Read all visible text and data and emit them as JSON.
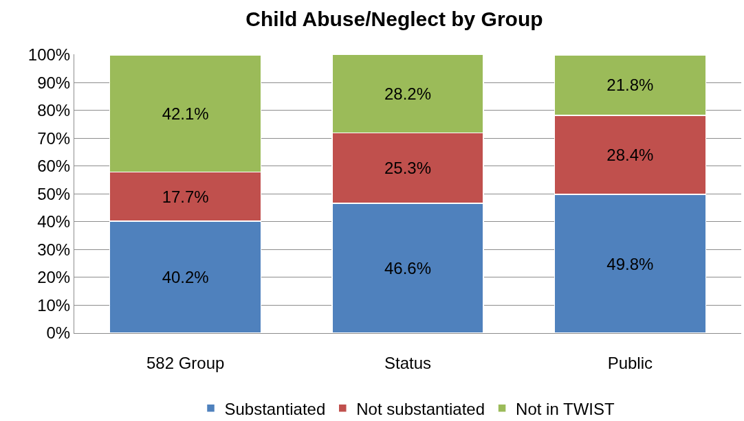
{
  "chart_data": {
    "type": "bar",
    "title": "Child Abuse/Neglect by Group",
    "categories": [
      "582 Group",
      "Status",
      "Public"
    ],
    "series": [
      {
        "name": "Substantiated",
        "color": "#4f81bd",
        "values": [
          40.2,
          46.6,
          49.8
        ],
        "value_labels": [
          "40.2%",
          "46.6%",
          "49.8%"
        ]
      },
      {
        "name": "Not substantiated",
        "color": "#c0504d",
        "values": [
          17.7,
          25.3,
          28.4
        ],
        "value_labels": [
          "17.7%",
          "25.3%",
          "28.4%"
        ]
      },
      {
        "name": "Not in TWIST",
        "color": "#9bbb59",
        "values": [
          42.1,
          28.2,
          21.8
        ],
        "value_labels": [
          "42.1%",
          "28.2%",
          "21.8%"
        ]
      }
    ],
    "stacked": true,
    "ylim": [
      0,
      100.2
    ],
    "yticks": [
      {
        "value": 0,
        "label": "0%"
      },
      {
        "value": 10,
        "label": "10%"
      },
      {
        "value": 20,
        "label": "20%"
      },
      {
        "value": 30,
        "label": "30%"
      },
      {
        "value": 40,
        "label": "40%"
      },
      {
        "value": 50,
        "label": "50%"
      },
      {
        "value": 60,
        "label": "60%"
      },
      {
        "value": 70,
        "label": "70%"
      },
      {
        "value": 80,
        "label": "80%"
      },
      {
        "value": 90,
        "label": "90%"
      },
      {
        "value": 100,
        "label": "100%"
      }
    ],
    "grid": "y",
    "legend": "bottom"
  }
}
